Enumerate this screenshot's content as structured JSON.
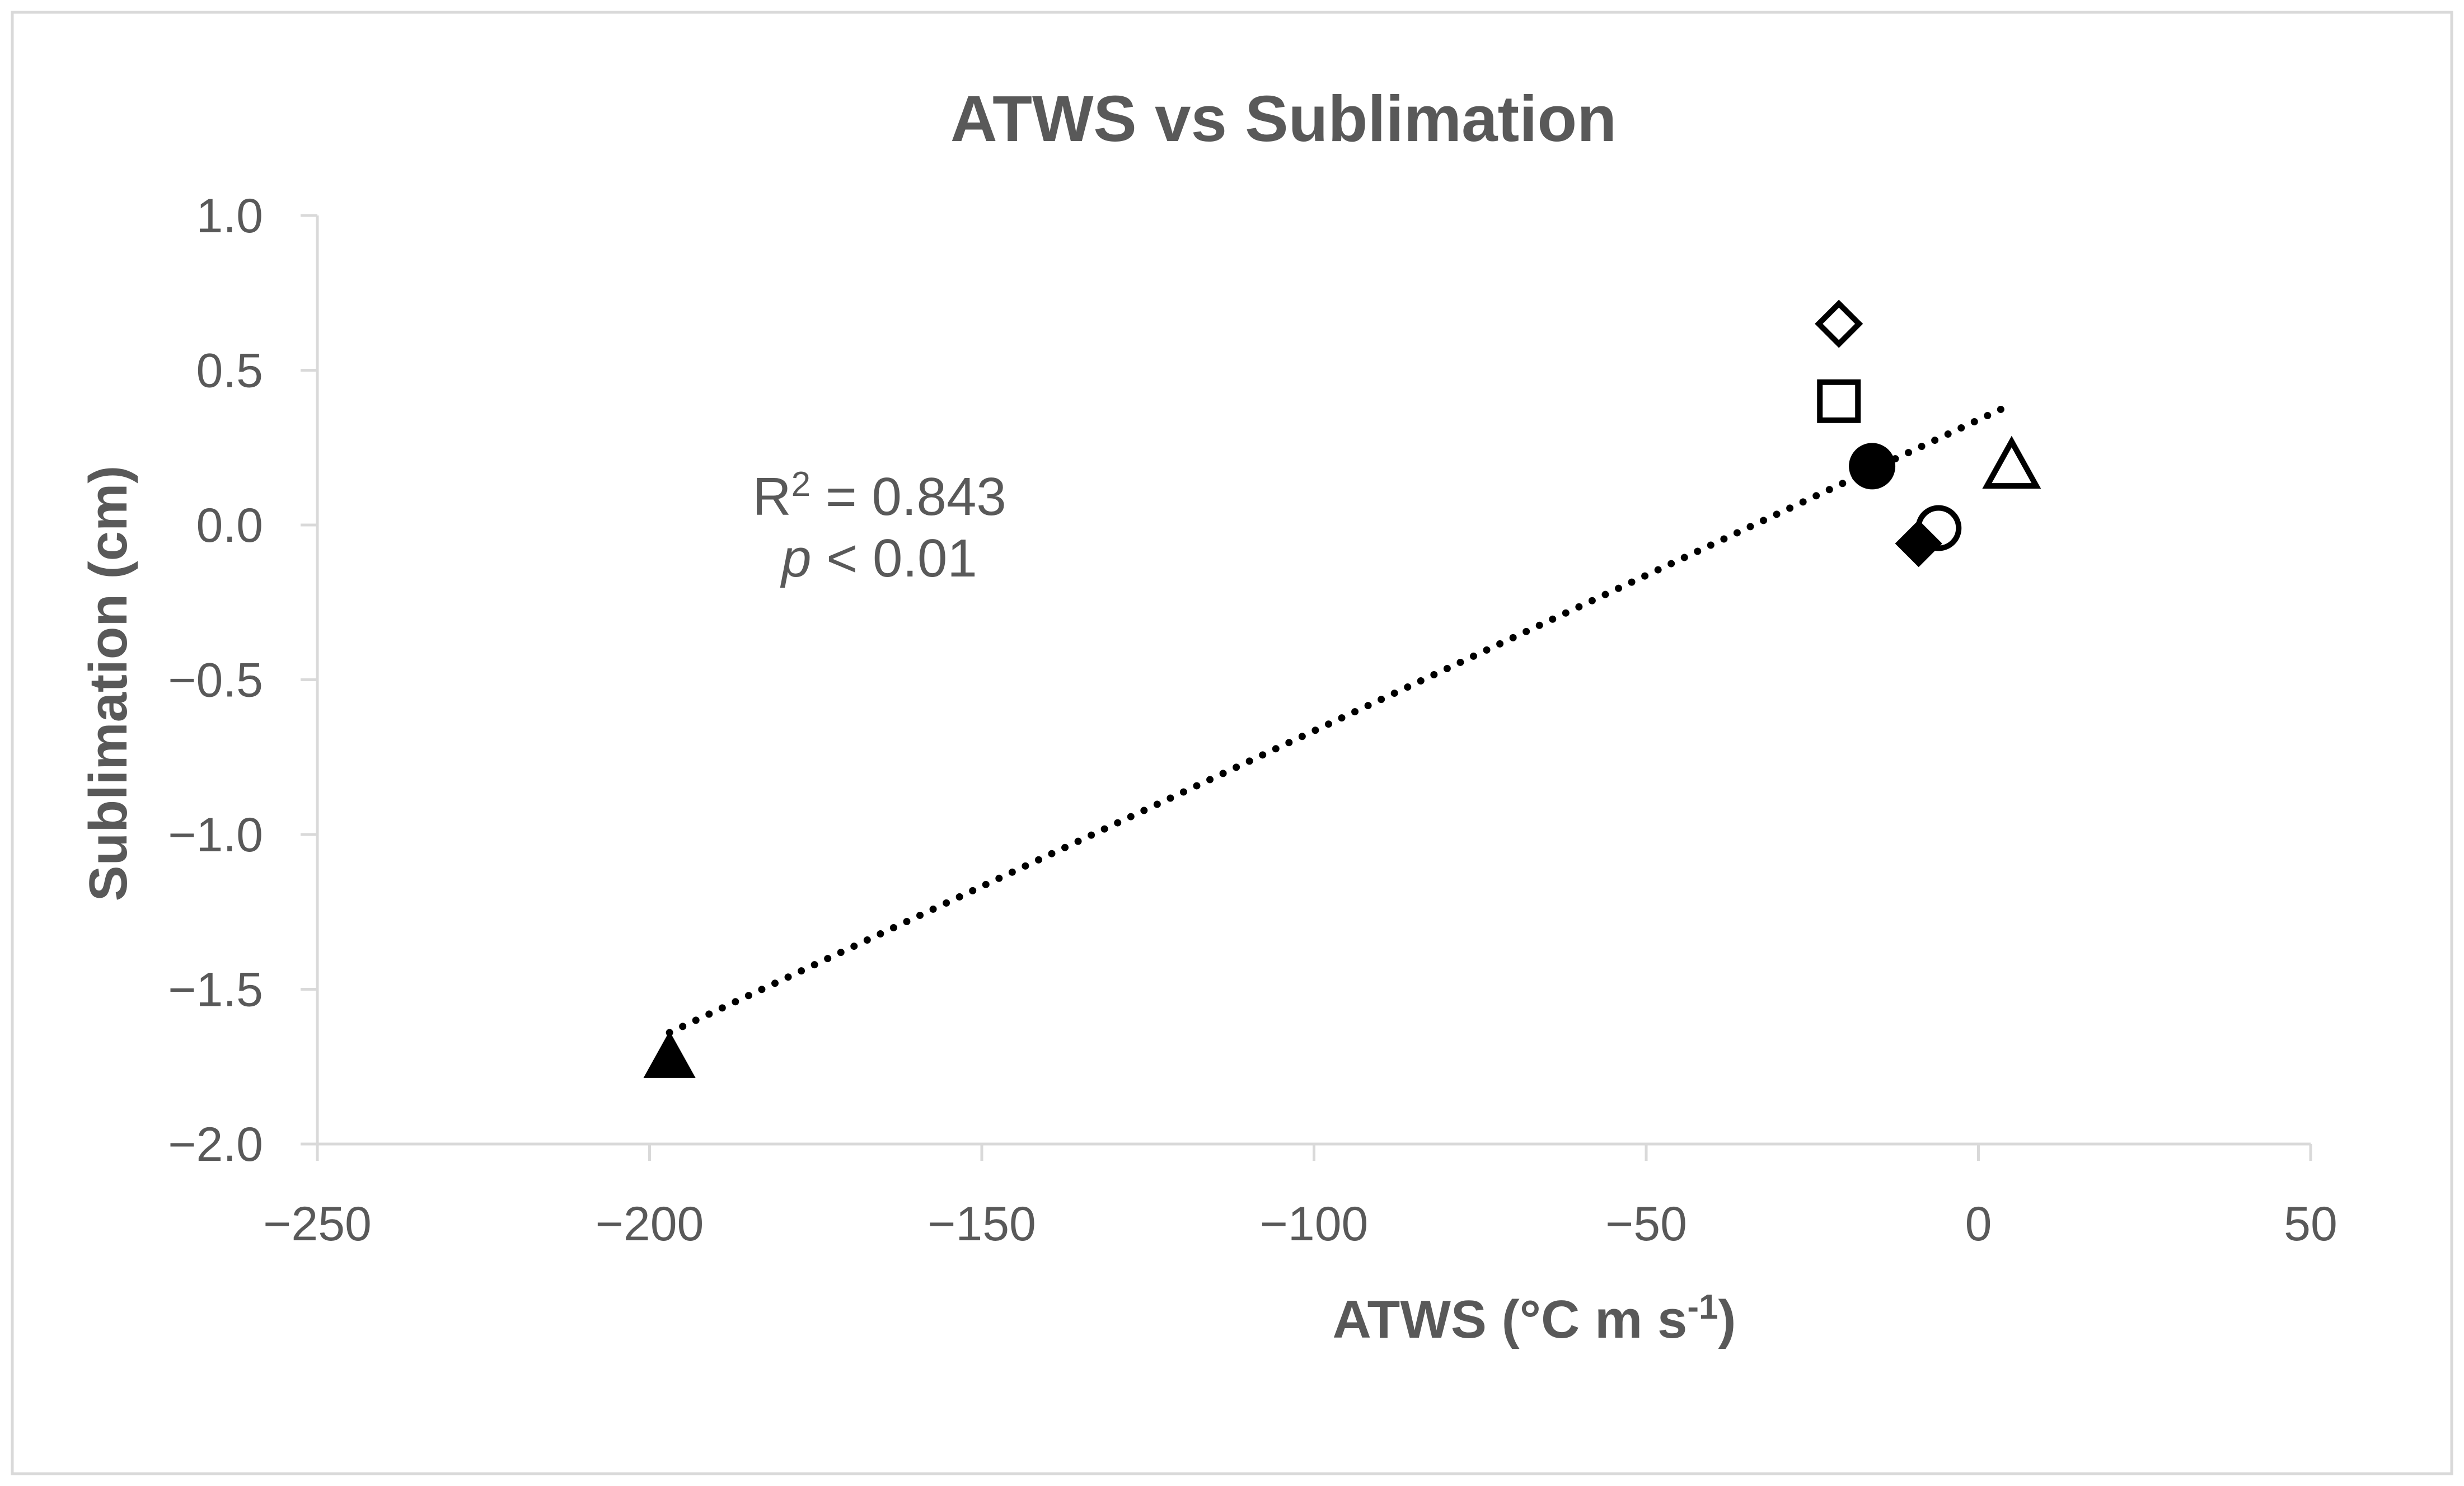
{
  "chart_data": {
    "type": "scatter",
    "title": "ATWS vs Sublimation",
    "xlabel_main": "ATWS (°C m s",
    "xlabel_sup": "-1",
    "xlabel_end": ")",
    "ylabel": "Sublimation (cm)",
    "xlim": [
      -250,
      50
    ],
    "ylim": [
      -2.0,
      1.0
    ],
    "xticks": [
      -250,
      -200,
      -150,
      -100,
      -50,
      0,
      50
    ],
    "xtick_labels": [
      "−250",
      "−200",
      "−150",
      "−100",
      "−50",
      "0",
      "50"
    ],
    "yticks": [
      1.0,
      0.5,
      0.0,
      -0.5,
      -1.0,
      -1.5,
      -2.0
    ],
    "ytick_labels": [
      "1.0",
      "0.5",
      "0.0",
      "−0.5",
      "−1.0",
      "−1.5",
      "−2.0"
    ],
    "grid": false,
    "points": [
      {
        "x": -197,
        "y": -1.72,
        "marker": "triangle",
        "filled": true
      },
      {
        "x": 5,
        "y": 0.19,
        "marker": "triangle",
        "filled": false
      },
      {
        "x": -16,
        "y": 0.19,
        "marker": "circle",
        "filled": true
      },
      {
        "x": -6,
        "y": -0.01,
        "marker": "circle",
        "filled": false
      },
      {
        "x": -21,
        "y": 0.65,
        "marker": "diamond",
        "filled": false
      },
      {
        "x": -9,
        "y": -0.06,
        "marker": "diamond",
        "filled": true
      },
      {
        "x": -21,
        "y": 0.4,
        "marker": "square",
        "filled": false
      }
    ],
    "trendline": {
      "style": "dotted",
      "x_start": -197,
      "y_start": -1.64,
      "x_end": 5,
      "y_end": 0.39
    },
    "annotation": {
      "r2_prefix": "R",
      "r2_sup": "2",
      "r2_suffix": " = 0.843",
      "p_symbol": "p",
      "p_suffix": " < 0.01"
    }
  }
}
